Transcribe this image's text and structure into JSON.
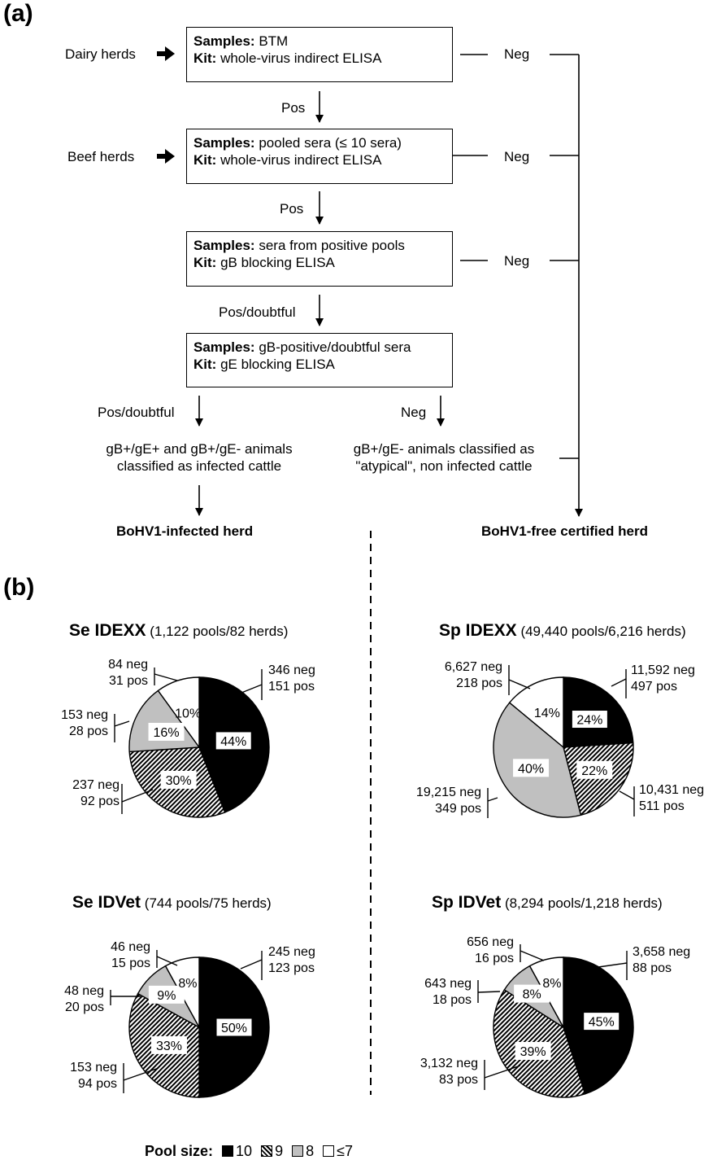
{
  "panel_a": {
    "label": "(a)",
    "inputs": {
      "dairy": "Dairy herds",
      "beef": "Beef herds"
    },
    "boxes": [
      {
        "s_key": "Samples:",
        "s_val": "BTM",
        "k_key": "Kit:",
        "k_val": "whole-virus indirect ELISA"
      },
      {
        "s_key": "Samples:",
        "s_val": "pooled sera (≤ 10 sera)",
        "k_key": "Kit:",
        "k_val": "whole-virus indirect ELISA"
      },
      {
        "s_key": "Samples:",
        "s_val": "sera from positive pools",
        "k_key": "Kit:",
        "k_val": "gB blocking ELISA"
      },
      {
        "s_key": "Samples:",
        "s_val": "gB-positive/doubtful sera",
        "k_key": "Kit:",
        "k_val": "gE blocking ELISA"
      }
    ],
    "edges": {
      "pos1": "Pos",
      "pos2": "Pos",
      "pos3": "Pos/doubtful",
      "pos4": "Pos/doubtful",
      "neg": "Neg"
    },
    "outcome_infected": [
      "gB+/gE+ and gB+/gE- animals",
      "classified as infected cattle"
    ],
    "outcome_atypical": [
      "gB+/gE- animals classified as",
      "\"atypical\", non infected cattle"
    ],
    "infected_herd": "BoHV1-infected herd",
    "free_herd": "BoHV1-free certified herd"
  },
  "panel_b": {
    "label": "(b)"
  },
  "colors": {
    "size10": "#000000",
    "size9": "#000000",
    "size8": "#c0c0c0",
    "size7": "#ffffff"
  },
  "chart_data": [
    {
      "type": "pie",
      "title_main": "Se IDEXX",
      "title_sub": "(1,122 pools/82 herds)",
      "slices": [
        {
          "label": "10",
          "percent": 44,
          "neg": "346 neg",
          "pos": "151 pos"
        },
        {
          "label": "9",
          "percent": 30,
          "neg": "237 neg",
          "pos": "92 pos"
        },
        {
          "label": "8",
          "percent": 16,
          "neg": "153 neg",
          "pos": "28 pos"
        },
        {
          "label": "≤7",
          "percent": 10,
          "neg": "84 neg",
          "pos": "31 pos"
        }
      ]
    },
    {
      "type": "pie",
      "title_main": "Sp IDEXX",
      "title_sub": "(49,440 pools/6,216 herds)",
      "slices": [
        {
          "label": "10",
          "percent": 24,
          "neg": "11,592 neg",
          "pos": "497 pos"
        },
        {
          "label": "9",
          "percent": 22,
          "neg": "10,431 neg",
          "pos": "511 pos"
        },
        {
          "label": "8",
          "percent": 40,
          "neg": "19,215 neg",
          "pos": "349 pos"
        },
        {
          "label": "≤7",
          "percent": 14,
          "neg": "6,627 neg",
          "pos": "218 pos"
        }
      ]
    },
    {
      "type": "pie",
      "title_main": "Se IDVet",
      "title_sub": "(744 pools/75 herds)",
      "slices": [
        {
          "label": "10",
          "percent": 50,
          "neg": "245 neg",
          "pos": "123 pos"
        },
        {
          "label": "9",
          "percent": 33,
          "neg": "153 neg",
          "pos": "94 pos"
        },
        {
          "label": "8",
          "percent": 9,
          "neg": "48 neg",
          "pos": "20 pos"
        },
        {
          "label": "≤7",
          "percent": 8,
          "neg": "46 neg",
          "pos": "15 pos"
        }
      ]
    },
    {
      "type": "pie",
      "title_main": "Sp IDVet",
      "title_sub": "(8,294 pools/1,218 herds)",
      "slices": [
        {
          "label": "10",
          "percent": 45,
          "neg": "3,658 neg",
          "pos": "88 pos"
        },
        {
          "label": "9",
          "percent": 39,
          "neg": "3,132 neg",
          "pos": "83 pos"
        },
        {
          "label": "8",
          "percent": 8,
          "neg": "643 neg",
          "pos": "18 pos"
        },
        {
          "label": "≤7",
          "percent": 8,
          "neg": "656 neg",
          "pos": "16 pos"
        }
      ]
    }
  ],
  "legend": {
    "title": "Pool size:",
    "items": [
      "10",
      "9",
      "8",
      "≤7"
    ]
  }
}
